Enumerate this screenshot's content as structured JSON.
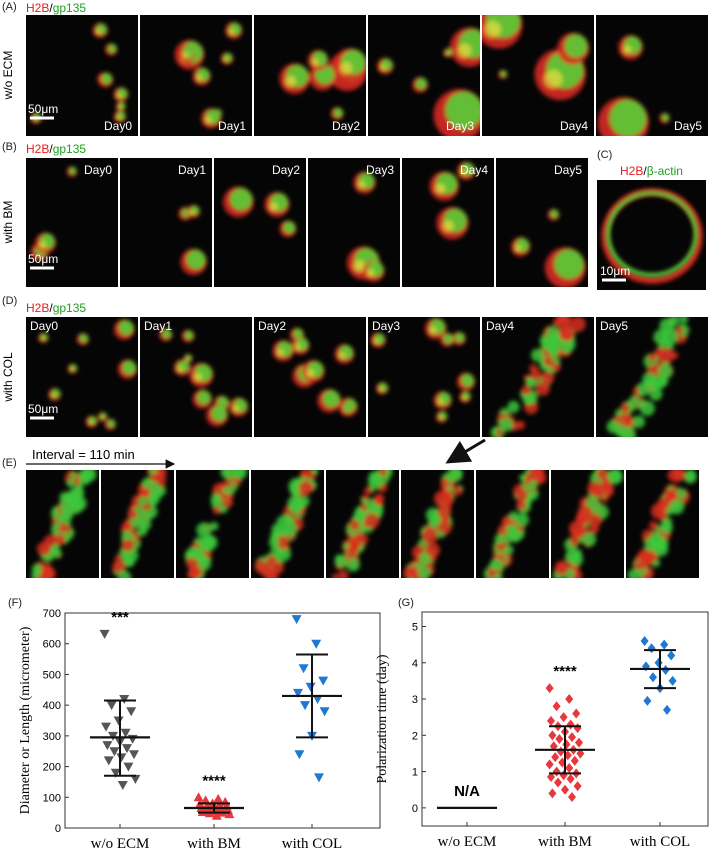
{
  "panels": [
    {
      "label": "(A)",
      "stain": [
        "H2B",
        "/",
        "gp135"
      ],
      "condition": "w/o ECM",
      "days": [
        "Day0",
        "Day1",
        "Day2",
        "Day3",
        "Day4",
        "Day5"
      ],
      "scale": "50μm"
    },
    {
      "label": "(B)",
      "stain": [
        "H2B",
        "/",
        "gp135"
      ],
      "condition": "with BM",
      "days": [
        "Day0",
        "Day1",
        "Day2",
        "Day3",
        "Day4",
        "Day5"
      ],
      "scale": "50μm"
    },
    {
      "label": "(C)",
      "stain": [
        "H2B",
        "/",
        "β-actin"
      ],
      "scale": "10μm"
    },
    {
      "label": "(D)",
      "stain": [
        "H2B",
        "/",
        "gp135"
      ],
      "condition": "with COL",
      "days": [
        "Day0",
        "Day1",
        "Day2",
        "Day3",
        "Day4",
        "Day5"
      ],
      "scale": "50μm"
    },
    {
      "label": "(E)",
      "interval": "Interval = 110 min"
    }
  ],
  "chart_data": [
    {
      "type": "dot",
      "panel_label": "(F)",
      "y_label": "Diameter or Length (micrometer)",
      "categories": [
        "w/o ECM",
        "with BM",
        "with COL"
      ],
      "ylim": [
        0,
        700
      ],
      "yticks": [
        0,
        100,
        200,
        300,
        400,
        500,
        600,
        700
      ],
      "annotations": [
        "***",
        "****",
        null
      ],
      "groups": [
        {
          "color": "#555555",
          "marker": "triangle-down",
          "values": [
            632,
            420,
            400,
            380,
            350,
            330,
            310,
            300,
            290,
            280,
            270,
            260,
            250,
            240,
            230,
            220,
            200,
            180,
            160,
            140
          ],
          "mean": 295,
          "error_low": 170,
          "error_high": 415
        },
        {
          "color": "#e8383d",
          "marker": "triangle-up",
          "values": [
            100,
            95,
            90,
            85,
            80,
            78,
            75,
            72,
            70,
            68,
            65,
            62,
            60,
            58,
            55,
            52,
            50,
            48,
            45,
            40
          ],
          "mean": 65,
          "error_low": 50,
          "error_high": 80
        },
        {
          "color": "#1f78d1",
          "marker": "triangle-down",
          "values": [
            680,
            600,
            520,
            480,
            460,
            440,
            420,
            400,
            380,
            300,
            240,
            165
          ],
          "mean": 430,
          "error_low": 295,
          "error_high": 565
        }
      ]
    },
    {
      "type": "dot",
      "panel_label": "(G)",
      "y_label": "Polarization time (day)",
      "categories": [
        "w/o ECM",
        "with BM",
        "with COL"
      ],
      "ylim": [
        -0.5,
        5.4
      ],
      "yticks": [
        0,
        1,
        2,
        3,
        4,
        5
      ],
      "annotations": [
        "N/A",
        "****",
        null
      ],
      "groups": [
        {
          "color": "#555555",
          "marker": "diamond",
          "values": [],
          "mean": 0
        },
        {
          "color": "#e8383d",
          "marker": "diamond",
          "values": [
            3.3,
            3.0,
            2.8,
            2.6,
            2.5,
            2.4,
            2.3,
            2.25,
            2.2,
            2.1,
            2.0,
            1.95,
            1.9,
            1.8,
            1.75,
            1.7,
            1.6,
            1.55,
            1.5,
            1.45,
            1.4,
            1.3,
            1.25,
            1.2,
            1.1,
            1.0,
            0.95,
            0.9,
            0.85,
            0.8,
            0.7,
            0.6,
            0.5,
            0.4,
            0.3
          ],
          "mean": 1.6,
          "error_low": 0.95,
          "error_high": 2.25
        },
        {
          "color": "#1f78d1",
          "marker": "diamond",
          "values": [
            4.6,
            4.5,
            4.4,
            4.2,
            4.0,
            3.9,
            3.8,
            3.6,
            3.5,
            3.3,
            2.95,
            2.7
          ],
          "mean": 3.83,
          "error_low": 3.3,
          "error_high": 4.35
        }
      ]
    }
  ]
}
